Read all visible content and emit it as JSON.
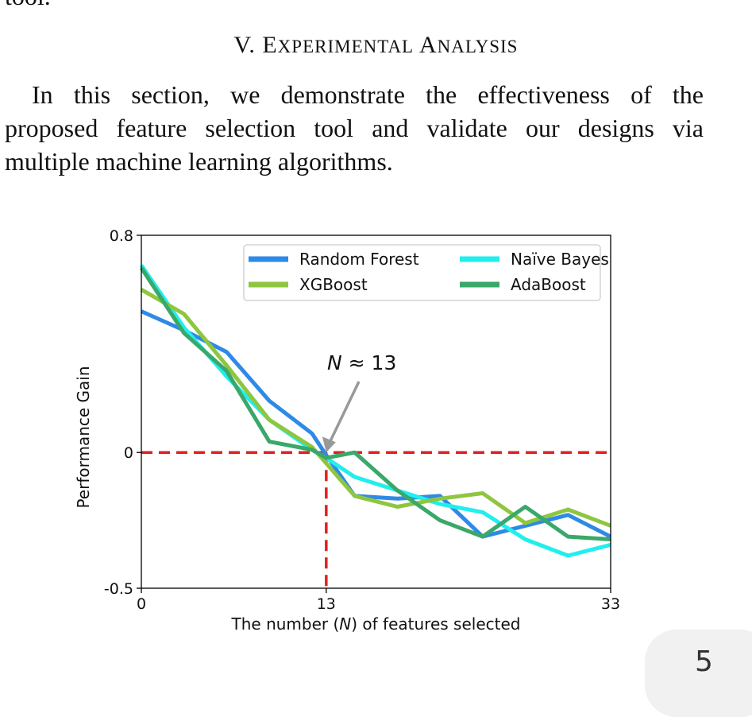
{
  "document": {
    "cut_line_text": "tool.",
    "section": {
      "numeral": "V.",
      "title": "EXPERIMENTAL ANALYSIS"
    },
    "paragraph_lines": [
      "In this section, we demonstrate the effectiveness of the",
      "proposed feature selection tool and validate our designs via",
      "multiple machine learning algorithms."
    ],
    "page_number": "5"
  },
  "chart_data": {
    "type": "line",
    "xlabel_parts": [
      "The number (",
      "N",
      ") of features selected"
    ],
    "ylabel": "Performance Gain",
    "xlim": [
      0,
      33
    ],
    "ylim": [
      -0.5,
      0.8
    ],
    "x_ticks": [
      {
        "value": 0,
        "label": "0"
      },
      {
        "value": 13,
        "label": "13"
      },
      {
        "value": 33,
        "label": "33"
      }
    ],
    "y_ticks": [
      {
        "value": 0.8,
        "label": "0.8"
      },
      {
        "value": 0,
        "label": "0"
      },
      {
        "value": -0.5,
        "label": "-0.5"
      }
    ],
    "legend_position": "top-right",
    "reference_lines": {
      "horizontal_y": 0,
      "vertical_x": 13,
      "color": "#dd2222"
    },
    "annotation": {
      "text_var": "N",
      "text_rest": " ≈ 13",
      "point": [
        13,
        0
      ]
    },
    "series": [
      {
        "name": "Random Forest",
        "color": "#2e8ae6",
        "x": [
          0,
          3,
          6,
          9,
          12,
          13,
          15,
          18,
          21,
          24,
          27,
          30,
          33
        ],
        "y": [
          0.52,
          0.45,
          0.37,
          0.19,
          0.07,
          -0.01,
          -0.16,
          -0.17,
          -0.16,
          -0.31,
          -0.27,
          -0.23,
          -0.31
        ]
      },
      {
        "name": "Naïve Bayes",
        "color": "#22eeee",
        "x": [
          0,
          3,
          6,
          9,
          12,
          13,
          15,
          18,
          21,
          24,
          27,
          30,
          33
        ],
        "y": [
          0.69,
          0.46,
          0.28,
          0.12,
          0.01,
          -0.02,
          -0.09,
          -0.14,
          -0.19,
          -0.22,
          -0.32,
          -0.38,
          -0.34
        ]
      },
      {
        "name": "XGBoost",
        "color": "#8ec63f",
        "x": [
          0,
          3,
          6,
          9,
          12,
          13,
          15,
          18,
          21,
          24,
          27,
          30,
          33
        ],
        "y": [
          0.6,
          0.51,
          0.32,
          0.12,
          0.02,
          -0.04,
          -0.16,
          -0.2,
          -0.17,
          -0.15,
          -0.26,
          -0.21,
          -0.27
        ]
      },
      {
        "name": "AdaBoost",
        "color": "#3aa86a",
        "x": [
          0,
          3,
          6,
          9,
          12,
          13,
          15,
          18,
          21,
          24,
          27,
          30,
          33
        ],
        "y": [
          0.68,
          0.44,
          0.3,
          0.04,
          0.01,
          -0.02,
          0.0,
          -0.14,
          -0.25,
          -0.31,
          -0.2,
          -0.31,
          -0.32
        ]
      }
    ]
  }
}
